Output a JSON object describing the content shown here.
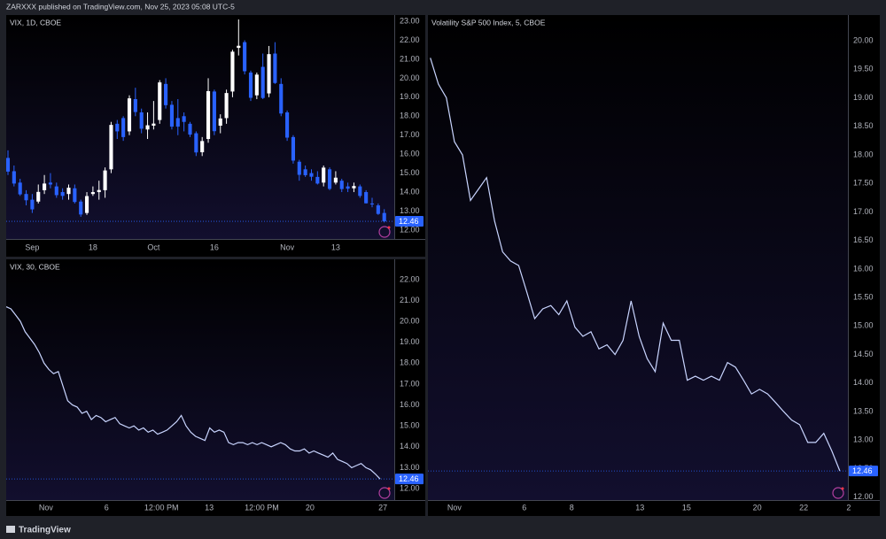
{
  "header": "ZARXXX published on TradingView.com, Nov 25, 2023 05:08 UTC-5",
  "footer": "TradingView",
  "chart_data": [
    {
      "type": "candlestick",
      "title": "VIX, 1D, CBOE",
      "up_color": "#ffffff",
      "down_color": "#2962ff",
      "open": [
        15.8,
        15.1,
        14.5,
        13.9,
        13.6,
        13.5,
        14.1,
        14.5,
        14.3,
        14.0,
        13.9,
        14.2,
        13.5,
        12.9,
        13.9,
        14.0,
        14.1,
        15.2,
        17.6,
        17.9,
        17.2,
        18.9,
        18.2,
        17.3,
        17.5,
        17.8,
        19.7,
        18.6,
        17.9,
        18.0,
        17.6,
        17.1,
        16.1,
        16.8,
        19.3,
        17.5,
        17.9,
        19.3,
        21.6,
        21.9,
        20.3,
        19.1,
        20.6,
        19.2,
        21.3,
        19.7,
        18.2,
        16.9,
        15.6,
        15.2,
        15.0,
        14.8,
        14.5,
        15.2,
        14.5,
        14.6,
        14.3,
        14.2,
        14.3,
        14.0,
        13.4,
        13.3,
        12.9
      ],
      "high": [
        16.2,
        15.4,
        14.7,
        14.1,
        13.9,
        14.4,
        14.9,
        15.0,
        14.5,
        14.2,
        14.4,
        14.4,
        13.6,
        14.0,
        14.3,
        14.6,
        15.3,
        17.7,
        17.8,
        18.0,
        19.1,
        19.5,
        18.4,
        18.2,
        18.8,
        19.9,
        20.0,
        18.8,
        18.9,
        18.2,
        17.7,
        17.2,
        16.9,
        20.0,
        19.4,
        18.1,
        19.4,
        21.5,
        23.1,
        22.0,
        20.4,
        20.3,
        21.3,
        21.7,
        21.9,
        20.0,
        18.3,
        17.0,
        15.7,
        15.4,
        15.2,
        15.1,
        15.4,
        15.3,
        15.1,
        14.7,
        14.5,
        14.5,
        14.4,
        14.1,
        13.7,
        13.4,
        13.1
      ],
      "low": [
        14.9,
        14.3,
        13.8,
        13.3,
        12.9,
        13.4,
        13.9,
        14.2,
        13.7,
        13.6,
        13.6,
        13.4,
        12.7,
        12.8,
        13.8,
        13.6,
        13.7,
        15.0,
        16.8,
        16.7,
        17.0,
        18.0,
        17.1,
        16.8,
        17.3,
        17.6,
        18.4,
        17.3,
        17.0,
        17.2,
        16.9,
        15.9,
        15.9,
        16.6,
        17.0,
        17.1,
        17.6,
        19.0,
        21.2,
        20.2,
        18.8,
        18.9,
        18.9,
        19.0,
        19.7,
        18.0,
        16.7,
        15.5,
        14.6,
        14.8,
        14.6,
        14.4,
        14.3,
        14.1,
        14.4,
        14.0,
        14.0,
        14.0,
        13.7,
        13.4,
        13.2,
        12.8,
        12.4
      ],
      "close": [
        15.08,
        14.45,
        13.88,
        13.57,
        13.09,
        14.01,
        14.45,
        14.4,
        13.84,
        13.8,
        14.23,
        13.48,
        12.82,
        13.79,
        14.0,
        14.11,
        15.14,
        17.54,
        17.2,
        16.9,
        18.94,
        18.22,
        17.34,
        17.52,
        17.61,
        19.78,
        18.58,
        17.45,
        17.45,
        17.7,
        17.03,
        16.09,
        16.69,
        19.32,
        17.21,
        17.88,
        19.22,
        21.4,
        21.71,
        20.37,
        18.97,
        20.19,
        18.96,
        21.27,
        19.75,
        18.14,
        16.87,
        15.66,
        14.91,
        14.89,
        14.81,
        14.45,
        15.29,
        14.17,
        14.76,
        14.16,
        14.18,
        14.32,
        13.8,
        13.41,
        13.35,
        12.85,
        12.46
      ],
      "last": 12.46,
      "xlim": [
        -0.29,
        63.65
      ],
      "xticks": [
        {
          "value": 4,
          "label": "Sep"
        },
        {
          "value": 14,
          "label": "18"
        },
        {
          "value": 24,
          "label": "Oct"
        },
        {
          "value": 34,
          "label": "16"
        },
        {
          "value": 46,
          "label": "Nov"
        },
        {
          "value": 54,
          "label": "13"
        }
      ],
      "ylim": [
        11.53,
        23.33
      ],
      "yticks": [
        {
          "value": 12,
          "label": "12.00"
        },
        {
          "value": 13,
          "label": "13.00"
        },
        {
          "value": 14,
          "label": "14.00"
        },
        {
          "value": 15,
          "label": "15.00"
        },
        {
          "value": 16,
          "label": "16.00"
        },
        {
          "value": 17,
          "label": "17.00"
        },
        {
          "value": 18,
          "label": "18.00"
        },
        {
          "value": 19,
          "label": "19.00"
        },
        {
          "value": 20,
          "label": "20.00"
        },
        {
          "value": 21,
          "label": "21.00"
        },
        {
          "value": 22,
          "label": "22.00"
        },
        {
          "value": 23,
          "label": "23.00"
        }
      ],
      "grid": false
    },
    {
      "type": "line",
      "title": "VIX, 30, CBOE",
      "series": [
        {
          "color": "#c9d5ff",
          "values": [
            20.7,
            20.6,
            20.3,
            20.0,
            19.5,
            19.2,
            18.9,
            18.5,
            18.0,
            17.7,
            17.5,
            17.6,
            16.9,
            16.2,
            16.0,
            15.9,
            15.6,
            15.7,
            15.3,
            15.5,
            15.4,
            15.2,
            15.3,
            15.4,
            15.1,
            15.0,
            14.9,
            15.0,
            14.8,
            14.9,
            14.7,
            14.8,
            14.6,
            14.7,
            14.8,
            15.0,
            15.2,
            15.5,
            15.0,
            14.7,
            14.5,
            14.4,
            14.3,
            14.9,
            14.7,
            14.8,
            14.7,
            14.2,
            14.1,
            14.2,
            14.2,
            14.1,
            14.2,
            14.1,
            14.2,
            14.1,
            14.0,
            14.1,
            14.2,
            14.1,
            13.9,
            13.8,
            13.8,
            13.9,
            13.7,
            13.8,
            13.7,
            13.6,
            13.5,
            13.7,
            13.4,
            13.3,
            13.2,
            13.0,
            13.1,
            13.2,
            13.0,
            12.9,
            12.7,
            12.46
          ]
        }
      ],
      "last": 12.46,
      "xlim": [
        0,
        82
      ],
      "xticks": [
        {
          "value": 8.4,
          "label": "Nov"
        },
        {
          "value": 21.2,
          "label": "6"
        },
        {
          "value": 32.8,
          "label": "12:00 PM"
        },
        {
          "value": 42.9,
          "label": "13"
        },
        {
          "value": 54,
          "label": "12:00 PM"
        },
        {
          "value": 64.2,
          "label": "20"
        },
        {
          "value": 79.6,
          "label": "27"
        }
      ],
      "ylim": [
        11.45,
        22.97
      ],
      "yticks": [
        {
          "value": 12,
          "label": "12.00"
        },
        {
          "value": 13,
          "label": "13.00"
        },
        {
          "value": 14,
          "label": "14.00"
        },
        {
          "value": 15,
          "label": "15.00"
        },
        {
          "value": 16,
          "label": "16.00"
        },
        {
          "value": 17,
          "label": "17.00"
        },
        {
          "value": 18,
          "label": "18.00"
        },
        {
          "value": 19,
          "label": "19.00"
        },
        {
          "value": 20,
          "label": "20.00"
        },
        {
          "value": 21,
          "label": "21.00"
        },
        {
          "value": 22,
          "label": "22.00"
        }
      ],
      "grid": false
    },
    {
      "type": "line",
      "title": "Volatility S&P 500 Index, 5, CBOE",
      "series": [
        {
          "color": "#c9d5ff",
          "values": [
            19.7,
            19.24,
            19.0,
            18.23,
            18.0,
            17.2,
            17.4,
            17.6,
            16.84,
            16.3,
            16.14,
            16.06,
            15.6,
            15.13,
            15.3,
            15.36,
            15.2,
            15.44,
            14.98,
            14.82,
            14.9,
            14.6,
            14.67,
            14.5,
            14.75,
            15.44,
            14.82,
            14.43,
            14.2,
            15.05,
            14.75,
            14.75,
            14.05,
            14.12,
            14.05,
            14.12,
            14.05,
            14.36,
            14.28,
            14.05,
            13.81,
            13.89,
            13.81,
            13.66,
            13.5,
            13.35,
            13.27,
            12.96,
            12.96,
            13.12,
            12.81,
            12.46
          ]
        }
      ],
      "last": 12.46,
      "xlim": [
        -0.3,
        52
      ],
      "xticks": [
        {
          "value": 3.0,
          "label": "Nov"
        },
        {
          "value": 11.7,
          "label": "6"
        },
        {
          "value": 17.6,
          "label": "8"
        },
        {
          "value": 26.1,
          "label": "13"
        },
        {
          "value": 31.9,
          "label": "15"
        },
        {
          "value": 40.7,
          "label": "20"
        },
        {
          "value": 46.5,
          "label": "22"
        },
        {
          "value": 52.1,
          "label": "2"
        }
      ],
      "ylim": [
        11.95,
        20.45
      ],
      "yticks": [
        {
          "value": 12,
          "label": "12.00"
        },
        {
          "value": 12.5,
          "label": "12.50"
        },
        {
          "value": 13,
          "label": "13.00"
        },
        {
          "value": 13.5,
          "label": "13.50"
        },
        {
          "value": 14,
          "label": "14.00"
        },
        {
          "value": 14.5,
          "label": "14.50"
        },
        {
          "value": 15,
          "label": "15.00"
        },
        {
          "value": 15.5,
          "label": "15.50"
        },
        {
          "value": 16,
          "label": "16.00"
        },
        {
          "value": 16.5,
          "label": "16.50"
        },
        {
          "value": 17,
          "label": "17.00"
        },
        {
          "value": 17.5,
          "label": "17.50"
        },
        {
          "value": 18,
          "label": "18.00"
        },
        {
          "value": 18.5,
          "label": "18.50"
        },
        {
          "value": 19,
          "label": "19.00"
        },
        {
          "value": 19.5,
          "label": "19.50"
        },
        {
          "value": 20,
          "label": "20.00"
        }
      ],
      "grid": false
    }
  ]
}
